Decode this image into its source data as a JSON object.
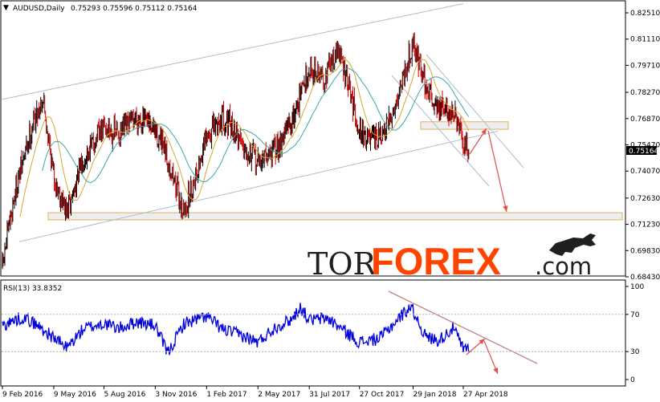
{
  "header": {
    "symbol_label": "AUDUSD,Daily",
    "ohlc_label": "0.75293 0.75596 0.75112 0.75164"
  },
  "rsi_header": {
    "label": "RSI(13) 33.8352"
  },
  "watermark": {
    "part1": "TOR",
    "part2": "FOREX",
    "part3": ".com"
  },
  "colors": {
    "candle_up": "#000000",
    "candle_down": "#cc0000",
    "ma_fast": "#d8a830",
    "ma_slow": "#3aa8a8",
    "channel": "#a9bdd0",
    "zone_fill": "#eeeeee",
    "zone_border": "#e0b060",
    "arrow": "#e05050",
    "rsi_line": "#0000dd",
    "rsi_trend": "#c08080",
    "watermark_dark": "#1f1f1f",
    "watermark_accent": "#ff4400"
  },
  "chart_data": [
    {
      "type": "candlestick",
      "title": "AUDUSD,Daily",
      "ylim": [
        0.6834,
        0.8322
      ],
      "y_ticks": [
        "0.82510",
        "0.81110",
        "0.79710",
        "0.78270",
        "0.76870",
        "0.75470",
        "0.74070",
        "0.72630",
        "0.71230",
        "0.69830",
        "0.68430"
      ],
      "current_price": "0.75164",
      "x_ticks": [
        "9 Feb 2016",
        "9 May 2016",
        "5 Aug 2016",
        "3 Nov 2016",
        "1 Feb 2017",
        "2 May 2017",
        "31 Jul 2017",
        "27 Oct 2017",
        "29 Jan 2018",
        "27 Apr 2018"
      ],
      "close_path": [
        [
          "9 Feb 2016",
          0.69
        ],
        [
          "1 Mar 2016",
          0.728
        ],
        [
          "1 Apr 2016",
          0.765
        ],
        [
          "20 Apr 2016",
          0.78
        ],
        [
          "9 May 2016",
          0.738
        ],
        [
          "1 Jun 2016",
          0.718
        ],
        [
          "1 Jul 2016",
          0.748
        ],
        [
          "5 Aug 2016",
          0.764
        ],
        [
          "1 Sep 2016",
          0.76
        ],
        [
          "1 Oct 2016",
          0.77
        ],
        [
          "3 Nov 2016",
          0.762
        ],
        [
          "1 Dec 2016",
          0.742
        ],
        [
          "23 Dec 2016",
          0.718
        ],
        [
          "1 Feb 2017",
          0.758
        ],
        [
          "1 Mar 2017",
          0.77
        ],
        [
          "1 Apr 2017",
          0.758
        ],
        [
          "2 May 2017",
          0.745
        ],
        [
          "1 Jun 2017",
          0.752
        ],
        [
          "1 Jul 2017",
          0.768
        ],
        [
          "31 Jul 2017",
          0.796
        ],
        [
          "25 Aug 2017",
          0.79
        ],
        [
          "20 Sep 2017",
          0.806
        ],
        [
          "27 Oct 2017",
          0.763
        ],
        [
          "15 Nov 2017",
          0.756
        ],
        [
          "10 Dec 2017",
          0.76
        ],
        [
          "1 Jan 2018",
          0.78
        ],
        [
          "29 Jan 2018",
          0.81
        ],
        [
          "20 Feb 2018",
          0.786
        ],
        [
          "15 Mar 2018",
          0.774
        ],
        [
          "10 Apr 2018",
          0.772
        ],
        [
          "27 Apr 2018",
          0.754
        ],
        [
          "7 May 2018",
          0.7516
        ]
      ],
      "channel": {
        "upper": [
          [
            "9 Feb 2016",
            0.779
          ],
          [
            "27 Apr 2018",
            0.83
          ]
        ],
        "lower": [
          [
            "9 Mar 2016",
            0.703
          ],
          [
            "27 Jun 2018",
            0.762
          ]
        ]
      },
      "support_zone": [
        0.7147,
        0.7185
      ],
      "resistance_zone": [
        0.763,
        0.767
      ]
    },
    {
      "type": "line",
      "title": "RSI(13) 33.8352",
      "ylim": [
        0,
        100
      ],
      "y_ticks": [
        "100",
        "70",
        "30",
        "0"
      ],
      "levels": [
        70,
        30
      ],
      "current_value": 33.8352,
      "values_path": [
        [
          "9 Feb 2016",
          58
        ],
        [
          "15 Mar 2016",
          67
        ],
        [
          "1 Apr 2016",
          62
        ],
        [
          "9 May 2016",
          45
        ],
        [
          "1 Jun 2016",
          34
        ],
        [
          "1 Jul 2016",
          55
        ],
        [
          "5 Aug 2016",
          60
        ],
        [
          "1 Sep 2016",
          55
        ],
        [
          "1 Oct 2016",
          62
        ],
        [
          "3 Nov 2016",
          58
        ],
        [
          "25 Nov 2016",
          28
        ],
        [
          "23 Dec 2016",
          60
        ],
        [
          "1 Feb 2017",
          68
        ],
        [
          "1 Mar 2017",
          54
        ],
        [
          "1 Apr 2017",
          48
        ],
        [
          "2 May 2017",
          40
        ],
        [
          "1 Jun 2017",
          56
        ],
        [
          "1 Jul 2017",
          65
        ],
        [
          "15 Jul 2017",
          78
        ],
        [
          "31 Jul 2017",
          64
        ],
        [
          "1 Sep 2017",
          66
        ],
        [
          "27 Oct 2017",
          40
        ],
        [
          "1 Dec 2017",
          44
        ],
        [
          "1 Jan 2018",
          64
        ],
        [
          "25 Jan 2018",
          79
        ],
        [
          "20 Feb 2018",
          46
        ],
        [
          "15 Mar 2018",
          42
        ],
        [
          "10 Apr 2018",
          56
        ],
        [
          "27 Apr 2018",
          32
        ],
        [
          "7 May 2018",
          33.8
        ]
      ]
    }
  ]
}
